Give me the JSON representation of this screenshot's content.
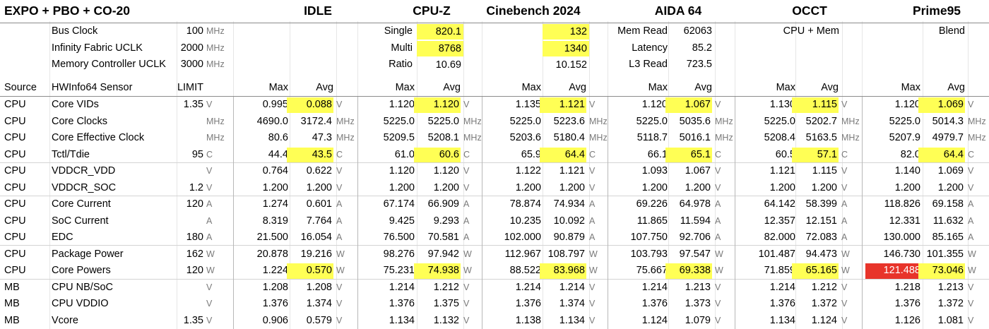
{
  "title": "EXPO + PBO + CO-20",
  "benchmarks": [
    "IDLE",
    "CPU-Z",
    "Cinebench 2024",
    "AIDA 64",
    "OCCT",
    "Prime95"
  ],
  "config": [
    {
      "label": "Bus Clock",
      "value": "100",
      "unit": "MHz"
    },
    {
      "label": "Infinity Fabric UCLK",
      "value": "2000",
      "unit": "MHz"
    },
    {
      "label": "Memory Controller UCLK",
      "value": "3000",
      "unit": "MHz"
    }
  ],
  "cpuz": {
    "labels": [
      "Single",
      "Multi",
      "Ratio"
    ],
    "values": [
      "820.1",
      "8768",
      "10.69"
    ]
  },
  "cinebench": {
    "values": [
      "132",
      "1340",
      "10.152"
    ]
  },
  "aida": {
    "labels": [
      "Mem Read",
      "Latency",
      "L3 Read"
    ],
    "values": [
      "62063",
      "85.2",
      "723.5"
    ]
  },
  "occt_mode": "CPU + Mem",
  "prime_mode": "Blend",
  "columns": {
    "source": "Source",
    "sensor": "HWInfo64 Sensor",
    "limit": "LIMIT",
    "max": "Max",
    "avg": "Avg"
  },
  "rows": [
    {
      "source": "CPU",
      "sensor": "Core VIDs",
      "limit": "1.35",
      "unit": "V",
      "vals": [
        [
          "0.995",
          "0.088"
        ],
        [
          "1.120",
          "1.120"
        ],
        [
          "1.135",
          "1.121"
        ],
        [
          "1.120",
          "1.067"
        ],
        [
          "1.130",
          "1.115"
        ],
        [
          "1.120",
          "1.069"
        ]
      ],
      "hl": "avg"
    },
    {
      "source": "CPU",
      "sensor": "Core Clocks",
      "limit": "",
      "unit": "MHz",
      "vals": [
        [
          "4690.0",
          "3172.4"
        ],
        [
          "5225.0",
          "5225.0"
        ],
        [
          "5225.0",
          "5223.6"
        ],
        [
          "5225.0",
          "5035.6"
        ],
        [
          "5225.0",
          "5202.7"
        ],
        [
          "5225.0",
          "5014.3"
        ]
      ]
    },
    {
      "source": "CPU",
      "sensor": "Core Effective Clock",
      "limit": "",
      "unit": "MHz",
      "vals": [
        [
          "80.6",
          "47.3"
        ],
        [
          "5209.5",
          "5208.1"
        ],
        [
          "5203.6",
          "5180.4"
        ],
        [
          "5118.7",
          "5016.1"
        ],
        [
          "5208.4",
          "5163.5"
        ],
        [
          "5207.9",
          "4979.7"
        ]
      ]
    },
    {
      "source": "CPU",
      "sensor": "Tctl/Tdie",
      "limit": "95",
      "unit": "C",
      "vals": [
        [
          "44.4",
          "43.5"
        ],
        [
          "61.0",
          "60.6"
        ],
        [
          "65.9",
          "64.4"
        ],
        [
          "66.1",
          "65.1"
        ],
        [
          "60.5",
          "57.1"
        ],
        [
          "82.0",
          "64.4"
        ]
      ],
      "hl": "avg"
    },
    {
      "source": "CPU",
      "sensor": "VDDCR_VDD",
      "limit": "",
      "unit": "V",
      "vals": [
        [
          "0.764",
          "0.622"
        ],
        [
          "1.120",
          "1.120"
        ],
        [
          "1.122",
          "1.121"
        ],
        [
          "1.093",
          "1.067"
        ],
        [
          "1.121",
          "1.115"
        ],
        [
          "1.140",
          "1.069"
        ]
      ]
    },
    {
      "source": "CPU",
      "sensor": "VDDCR_SOC",
      "limit": "1.2",
      "unit": "V",
      "vals": [
        [
          "1.200",
          "1.200"
        ],
        [
          "1.200",
          "1.200"
        ],
        [
          "1.200",
          "1.200"
        ],
        [
          "1.200",
          "1.200"
        ],
        [
          "1.200",
          "1.200"
        ],
        [
          "1.200",
          "1.200"
        ]
      ]
    },
    {
      "source": "CPU",
      "sensor": "Core Current",
      "limit": "120",
      "unit": "A",
      "vals": [
        [
          "1.274",
          "0.601"
        ],
        [
          "67.174",
          "66.909"
        ],
        [
          "78.874",
          "74.934"
        ],
        [
          "69.226",
          "64.978"
        ],
        [
          "64.142",
          "58.399"
        ],
        [
          "118.826",
          "69.158"
        ]
      ]
    },
    {
      "source": "CPU",
      "sensor": "SoC Current",
      "limit": "",
      "unit": "A",
      "vals": [
        [
          "8.319",
          "7.764"
        ],
        [
          "9.425",
          "9.293"
        ],
        [
          "10.235",
          "10.092"
        ],
        [
          "11.865",
          "11.594"
        ],
        [
          "12.357",
          "12.151"
        ],
        [
          "12.331",
          "11.632"
        ]
      ]
    },
    {
      "source": "CPU",
      "sensor": "EDC",
      "limit": "180",
      "unit": "A",
      "vals": [
        [
          "21.500",
          "16.054"
        ],
        [
          "76.500",
          "70.581"
        ],
        [
          "102.000",
          "90.879"
        ],
        [
          "107.750",
          "92.706"
        ],
        [
          "82.000",
          "72.083"
        ],
        [
          "130.000",
          "85.165"
        ]
      ]
    },
    {
      "source": "CPU",
      "sensor": "Package Power",
      "limit": "162",
      "unit": "W",
      "vals": [
        [
          "20.878",
          "19.216"
        ],
        [
          "98.276",
          "97.942"
        ],
        [
          "112.967",
          "108.797"
        ],
        [
          "103.793",
          "97.547"
        ],
        [
          "101.487",
          "94.473"
        ],
        [
          "146.730",
          "101.355"
        ]
      ]
    },
    {
      "source": "CPU",
      "sensor": "Core Powers",
      "limit": "120",
      "unit": "W",
      "vals": [
        [
          "1.224",
          "0.570"
        ],
        [
          "75.231",
          "74.938"
        ],
        [
          "88.522",
          "83.968"
        ],
        [
          "75.667",
          "69.338"
        ],
        [
          "71.859",
          "65.165"
        ],
        [
          "121.488",
          "73.046"
        ]
      ],
      "hl": "avg",
      "red_max": 5
    },
    {
      "source": "MB",
      "sensor": "CPU NB/SoC",
      "limit": "",
      "unit": "V",
      "vals": [
        [
          "1.208",
          "1.208"
        ],
        [
          "1.214",
          "1.212"
        ],
        [
          "1.214",
          "1.214"
        ],
        [
          "1.214",
          "1.213"
        ],
        [
          "1.214",
          "1.212"
        ],
        [
          "1.218",
          "1.213"
        ]
      ]
    },
    {
      "source": "MB",
      "sensor": "CPU VDDIO",
      "limit": "",
      "unit": "V",
      "vals": [
        [
          "1.376",
          "1.374"
        ],
        [
          "1.376",
          "1.375"
        ],
        [
          "1.376",
          "1.374"
        ],
        [
          "1.376",
          "1.373"
        ],
        [
          "1.376",
          "1.372"
        ],
        [
          "1.376",
          "1.372"
        ]
      ]
    },
    {
      "source": "MB",
      "sensor": "Vcore",
      "limit": "1.35",
      "unit": "V",
      "vals": [
        [
          "0.906",
          "0.579"
        ],
        [
          "1.134",
          "1.132"
        ],
        [
          "1.138",
          "1.134"
        ],
        [
          "1.124",
          "1.079"
        ],
        [
          "1.134",
          "1.124"
        ],
        [
          "1.126",
          "1.081"
        ]
      ]
    }
  ],
  "colors": {
    "highlight": "#ffff55",
    "alert": "#e8342a"
  }
}
